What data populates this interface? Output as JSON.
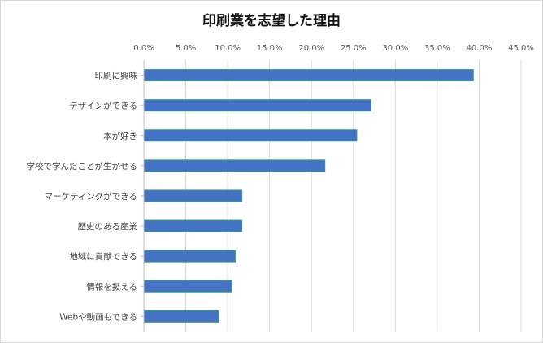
{
  "chart_data": {
    "type": "bar",
    "orientation": "horizontal",
    "title": "印刷業を志望した理由",
    "xlabel": "",
    "ylabel": "",
    "xlim": [
      0,
      45
    ],
    "x_ticks": [
      "0.0%",
      "5.0%",
      "10.0%",
      "15.0%",
      "20.0%",
      "25.0%",
      "30.0%",
      "35.0%",
      "40.0%",
      "45.0%"
    ],
    "x_tick_values": [
      0,
      5,
      10,
      15,
      20,
      25,
      30,
      35,
      40,
      45
    ],
    "x_axis_position": "top",
    "grid": true,
    "legend": "none",
    "bar_color": "#4472C4",
    "bar_edge_color": "#2E9E7E",
    "categories": [
      "印刷に興味",
      "デザインができる",
      "本が好き",
      "学校で学んだことが生かせる",
      "マーケティングができる",
      "歴史のある産業",
      "地域に貢献できる",
      "情報を扱える",
      "Webや動画もできる"
    ],
    "values": [
      39.3,
      27.1,
      25.4,
      21.6,
      11.7,
      11.7,
      10.9,
      10.5,
      8.9
    ]
  }
}
